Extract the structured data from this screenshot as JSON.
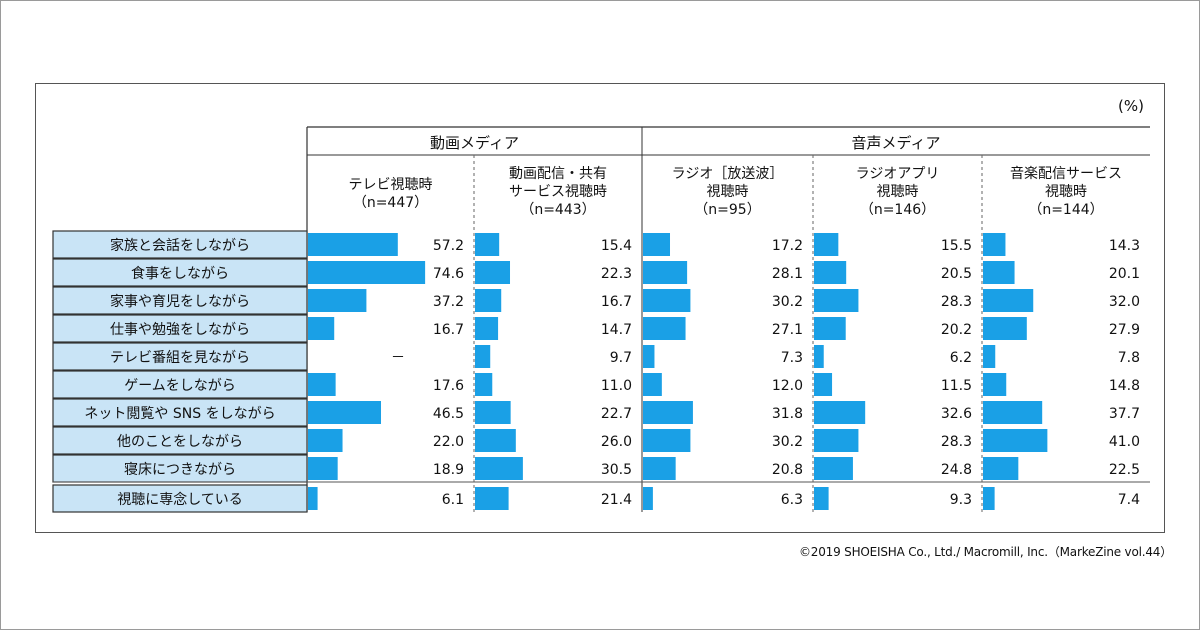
{
  "unit_label": "(%)",
  "credit": "©2019 SHOEISHA Co., Ltd./ Macromill, Inc.（MarkeZine vol.44）",
  "colors": {
    "bar": "#1aa0e6",
    "row_label_bg": "#c9e4f6",
    "row_label_border": "#333333"
  },
  "chart_data": {
    "type": "bar",
    "orientation": "horizontal",
    "unit": "%",
    "groups": [
      {
        "name": "動画メディア",
        "series_index": [
          0,
          1
        ]
      },
      {
        "name": "音声メディア",
        "series_index": [
          2,
          3,
          4
        ]
      }
    ],
    "categories": [
      "家族と会話をしながら",
      "食事をしながら",
      "家事や育児をしながら",
      "仕事や勉強をしながら",
      "テレビ番組を見ながら",
      "ゲームをしながら",
      "ネット閲覧や SNS をしながら",
      "他のことをしながら",
      "寝床につきながら",
      "視聴に専念している"
    ],
    "series": [
      {
        "name": "テレビ視聴時",
        "label_lines": [
          "テレビ視聴時",
          "（n=447）"
        ],
        "values": [
          57.2,
          74.6,
          37.2,
          16.7,
          null,
          17.6,
          46.5,
          22.0,
          18.9,
          6.1
        ],
        "display": [
          "57.2",
          "74.6",
          "37.2",
          "16.7",
          "－",
          "17.6",
          "46.5",
          "22.0",
          "18.9",
          "6.1"
        ]
      },
      {
        "name": "動画配信・共有サービス視聴時",
        "label_lines": [
          "動画配信・共有",
          "サービス視聴時",
          "（n=443）"
        ],
        "values": [
          15.4,
          22.3,
          16.7,
          14.7,
          9.7,
          11.0,
          22.7,
          26.0,
          30.5,
          21.4
        ],
        "display": [
          "15.4",
          "22.3",
          "16.7",
          "14.7",
          "9.7",
          "11.0",
          "22.7",
          "26.0",
          "30.5",
          "21.4"
        ]
      },
      {
        "name": "ラジオ［放送波］視聴時",
        "label_lines": [
          "ラジオ［放送波］",
          "視聴時",
          "（n=95）"
        ],
        "values": [
          17.2,
          28.1,
          30.2,
          27.1,
          7.3,
          12.0,
          31.8,
          30.2,
          20.8,
          6.3
        ],
        "display": [
          "17.2",
          "28.1",
          "30.2",
          "27.1",
          "7.3",
          "12.0",
          "31.8",
          "30.2",
          "20.8",
          "6.3"
        ]
      },
      {
        "name": "ラジオアプリ視聴時",
        "label_lines": [
          "ラジオアプリ",
          "視聴時",
          "（n=146）"
        ],
        "values": [
          15.5,
          20.5,
          28.3,
          20.2,
          6.2,
          11.5,
          32.6,
          28.3,
          24.8,
          9.3
        ],
        "display": [
          "15.5",
          "20.5",
          "28.3",
          "20.2",
          "6.2",
          "11.5",
          "32.6",
          "28.3",
          "24.8",
          "9.3"
        ]
      },
      {
        "name": "音楽配信サービス視聴時",
        "label_lines": [
          "音楽配信サービス",
          "視聴時",
          "（n=144）"
        ],
        "values": [
          14.3,
          20.1,
          32.0,
          27.9,
          7.8,
          14.8,
          37.7,
          41.0,
          22.5,
          7.4
        ],
        "display": [
          "14.3",
          "20.1",
          "32.0",
          "27.9",
          "7.8",
          "14.8",
          "37.7",
          "41.0",
          "22.5",
          "7.4"
        ]
      }
    ]
  }
}
